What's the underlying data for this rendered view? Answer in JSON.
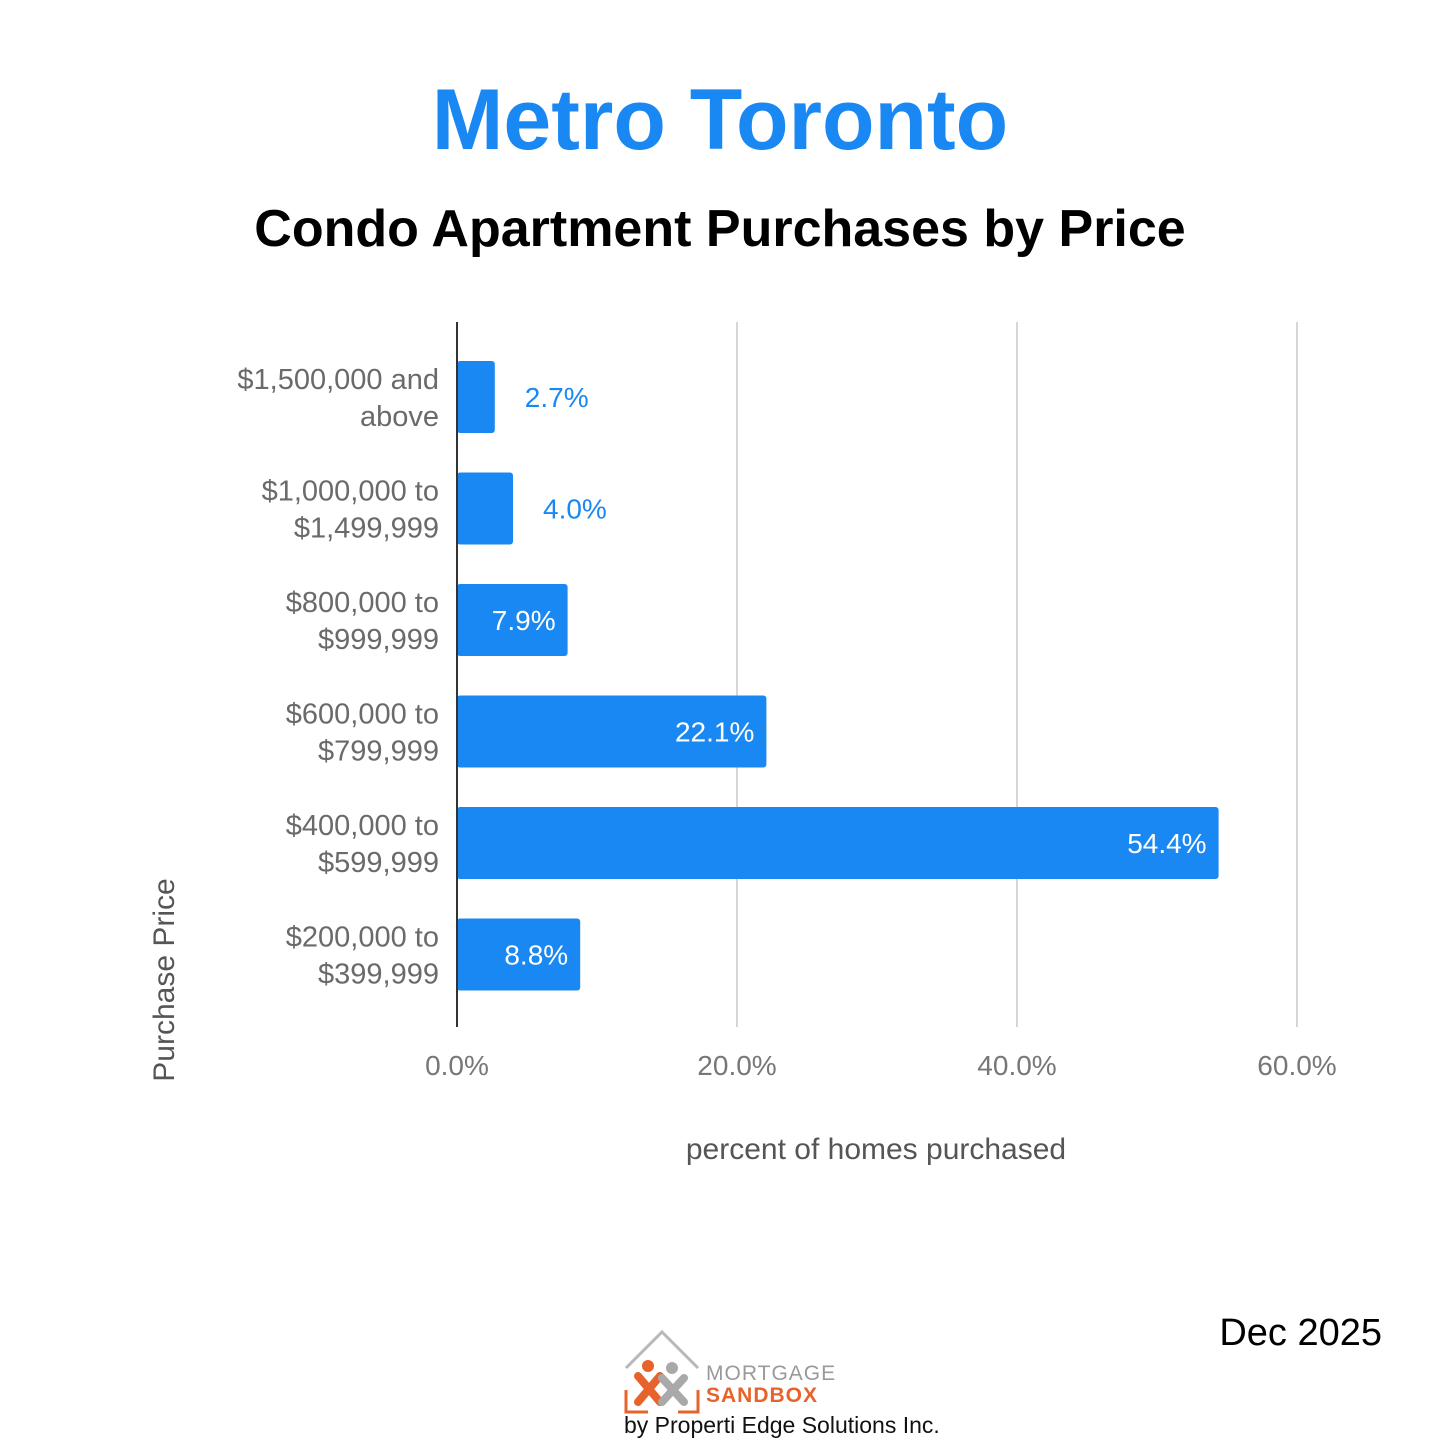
{
  "header": {
    "title": "Metro Toronto",
    "subtitle": "Condo Apartment Purchases by Price"
  },
  "chart_data": {
    "type": "bar",
    "orientation": "horizontal",
    "title": "Metro Toronto",
    "subtitle": "Condo Apartment Purchases by Price",
    "xlabel": "percent of homes purchased",
    "ylabel": "Purchase Price",
    "xlim": [
      0,
      60
    ],
    "xticks": [
      "0.0%",
      "20.0%",
      "40.0%",
      "60.0%"
    ],
    "categories": [
      [
        "$1,500,000 and",
        "above"
      ],
      [
        "$1,000,000 to",
        "$1,499,999"
      ],
      [
        "$800,000 to",
        "$999,999"
      ],
      [
        "$600,000 to",
        "$799,999"
      ],
      [
        "$400,000 to",
        "$599,999"
      ],
      [
        "$200,000 to",
        "$399,999"
      ]
    ],
    "values": [
      2.7,
      4.0,
      7.9,
      22.1,
      54.4,
      8.8
    ],
    "value_labels": [
      "2.7%",
      "4.0%",
      "7.9%",
      "22.1%",
      "54.4%",
      "8.8%"
    ],
    "grid": true,
    "bar_color": "#1a88f2"
  },
  "footer": {
    "date": "Dec 2025",
    "logo_line1": "MORTGAGE",
    "logo_line2": "SANDBOX",
    "byline": "by Properti Edge Solutions Inc."
  },
  "colors": {
    "accent": "#1a88f2",
    "logo_orange": "#e8632b",
    "logo_grey": "#9a9a9a"
  }
}
